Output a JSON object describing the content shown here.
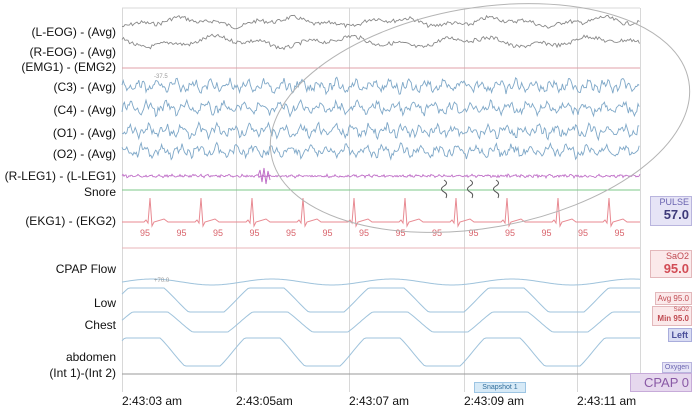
{
  "channels": [
    {
      "label": "(L-EOG) - (Avg)"
    },
    {
      "label": "(R-EOG) - (Avg)"
    },
    {
      "label": "(EMG1) - (EMG2)"
    },
    {
      "label": "(C3) - (Avg)"
    },
    {
      "label": "(C4) - (Avg)"
    },
    {
      "label": "(O1) - (Avg)"
    },
    {
      "label": "(O2) - (Avg)"
    },
    {
      "label": "(R-LEG1) - (L-LEG1)"
    },
    {
      "label": "Snore"
    },
    {
      "label": "(EKG1) - (EKG2)"
    },
    {
      "label": "CPAP Flow"
    },
    {
      "label": "Low"
    },
    {
      "label": "Chest"
    },
    {
      "label": "abdomen"
    },
    {
      "label": "(Int 1)-(Int 2)"
    }
  ],
  "emg_scale_text": "-37.5",
  "cpap_scale_text": "+70.0",
  "ekg_beat_values": [
    "95",
    "95",
    "95",
    "95",
    "95",
    "95",
    "95",
    "95",
    "95",
    "95",
    "95",
    "95",
    "95",
    "95"
  ],
  "time_labels": [
    "2:43:03 am",
    "2:43:05am",
    "2:43:07 am",
    "2:43:09 am",
    "2:43:11 am"
  ],
  "side_panel": {
    "pulse_title": "PULSE",
    "pulse_value": "57.0",
    "sao2_title": "SaO2",
    "sao2_value": "95.0",
    "avg_text": "Avg 95.0",
    "min_small": "SaO2",
    "min_text": "Min 95.0",
    "left_text": "Left",
    "oxygen_text": "Oxygen",
    "cpap_text": "CPAP 0"
  },
  "snapshot_label": "Snapshot 1",
  "colors": {
    "eeg": "#7fa8c8",
    "eog": "#8a8a8a",
    "emg": "#e0a0a8",
    "leg": "#c070c8",
    "snore": "#7cc98a",
    "ekg": "#e88a92",
    "resp": "#9fc3dc",
    "grid": "#d8d8d8",
    "annotation": "#a0a0a0"
  }
}
